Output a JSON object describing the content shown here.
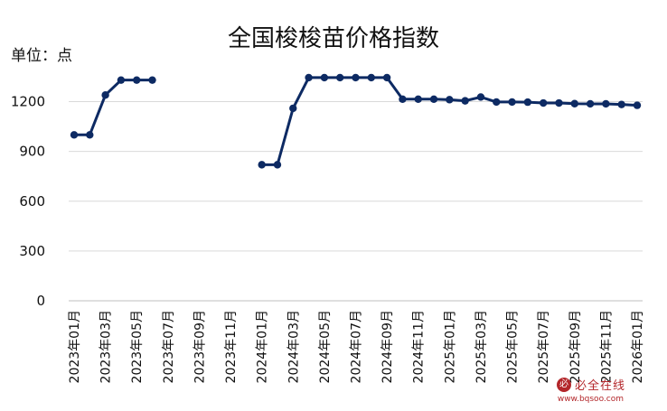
{
  "chart_data": {
    "type": "line",
    "title": "全国梭梭苗价格指数",
    "unit_label": "单位：点",
    "ylim": [
      0,
      1350
    ],
    "yticks": [
      0,
      300,
      600,
      900,
      1200
    ],
    "x_tick_labels": [
      "2023年01月",
      "2023年03月",
      "2023年05月",
      "2023年07月",
      "2023年09月",
      "2023年11月",
      "2024年01月",
      "2024年03月",
      "2024年05月",
      "2024年07月",
      "2024年09月",
      "2024年11月",
      "2025年01月",
      "2025年03月",
      "2025年05月",
      "2025年07月",
      "2025年09月",
      "2025年11月",
      "2026年01月"
    ],
    "x": [
      "2023年01月",
      "2023年02月",
      "2023年03月",
      "2023年04月",
      "2023年05月",
      "2023年06月",
      "2023年07月",
      "2023年08月",
      "2023年09月",
      "2023年10月",
      "2023年11月",
      "2023年12月",
      "2024年01月",
      "2024年02月",
      "2024年03月",
      "2024年04月",
      "2024年05月",
      "2024年06月",
      "2024年07月",
      "2024年08月",
      "2024年09月",
      "2024年10月",
      "2024年11月",
      "2024年12月",
      "2025年01月",
      "2025年02月",
      "2025年03月",
      "2025年04月",
      "2025年05月",
      "2025年06月",
      "2025年07月",
      "2025年08月",
      "2025年09月",
      "2025年10月",
      "2025年11月",
      "2025年12月",
      "2026年01月"
    ],
    "series": [
      {
        "values": [
          1000,
          1000,
          1240,
          1330,
          1330,
          1330,
          null,
          null,
          null,
          null,
          null,
          null,
          820,
          820,
          1160,
          1345,
          1345,
          1345,
          1345,
          1345,
          1345,
          1215,
          1215,
          1215,
          1212,
          1205,
          1228,
          1198,
          1198,
          1197,
          1192,
          1192,
          1188,
          1187,
          1187,
          1183,
          1178
        ],
        "color": "#0d2a63"
      }
    ],
    "grid": true
  },
  "watermark": {
    "logo_char": "必",
    "text": "必全在线",
    "url": "www.bqsoo.com"
  }
}
